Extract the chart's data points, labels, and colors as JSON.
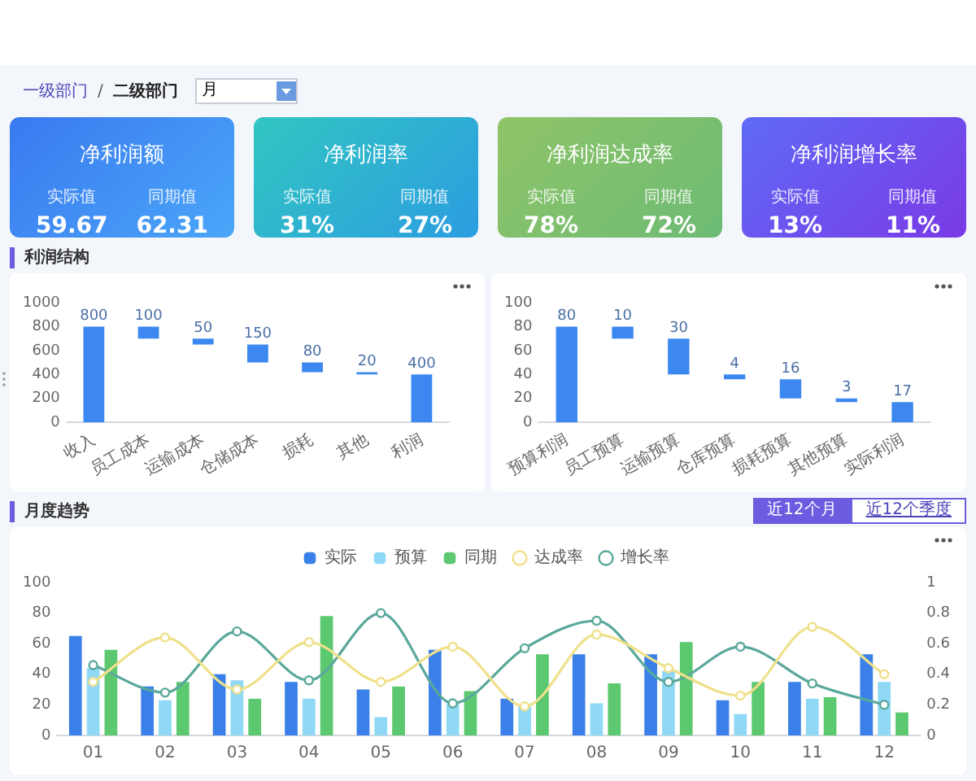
{
  "chart_data": [
    {
      "type": "other",
      "annotations": [
        "一级部门",
        "/",
        "二级部门",
        "月"
      ]
    },
    {
      "type": "other",
      "title": "净利润额",
      "annotations": [
        "实际值",
        "59.67",
        "同期值",
        "62.31"
      ]
    },
    {
      "type": "other",
      "title": "净利润率",
      "annotations": [
        "实际值",
        "31%",
        "同期值",
        "27%"
      ]
    },
    {
      "type": "other",
      "title": "净利润达成率",
      "annotations": [
        "实际值",
        "78%",
        "同期值",
        "72%"
      ]
    },
    {
      "type": "other",
      "title": "净利润增长率",
      "annotations": [
        "实际值",
        "13%",
        "同期值",
        "11%"
      ]
    },
    {
      "type": "bar",
      "title": "利润结构",
      "categories": [
        "收入",
        "员工成本",
        "运输成本",
        "仓储成本",
        "损耗",
        "其他",
        "利润"
      ],
      "values": [
        800,
        100,
        50,
        150,
        80,
        20,
        400
      ],
      "base": [
        0,
        700,
        650,
        500,
        420,
        400,
        0
      ],
      "color": "#3d88f0",
      "ylim": [
        0,
        1000
      ],
      "yticks": [
        0,
        200,
        400,
        600,
        800,
        1000
      ],
      "data_labels": true
    },
    {
      "type": "bar",
      "categories": [
        "预算利润",
        "员工预算",
        "运输预算",
        "仓库预算",
        "损耗预算",
        "其他预算",
        "实际利润"
      ],
      "values": [
        80,
        10,
        30,
        4,
        16,
        3,
        17
      ],
      "base": [
        0,
        70,
        40,
        36,
        20,
        17,
        0
      ],
      "color": "#3d88f0",
      "ylim": [
        0,
        100
      ],
      "yticks": [
        0,
        20,
        40,
        60,
        80,
        100
      ],
      "data_labels": true
    },
    {
      "type": "bar",
      "title": "月度趋势",
      "categories": [
        "01",
        "02",
        "03",
        "04",
        "05",
        "06",
        "07",
        "08",
        "09",
        "10",
        "11",
        "12"
      ],
      "series": [
        {
          "name": "实际",
          "color": "#3a80e8",
          "values": [
            65,
            32,
            40,
            35,
            30,
            56,
            24,
            53,
            53,
            23,
            35,
            53
          ]
        },
        {
          "name": "预算",
          "color": "#8fd8f6",
          "values": [
            44,
            23,
            36,
            24,
            12,
            21,
            19,
            21,
            42,
            14,
            24,
            35
          ]
        },
        {
          "name": "同期",
          "color": "#5cc870",
          "values": [
            56,
            35,
            24,
            78,
            32,
            29,
            53,
            34,
            61,
            35,
            25,
            15
          ]
        },
        {
          "name": "达成率",
          "type": "line",
          "axis": "y2",
          "color": "#efe08a",
          "values": [
            0.35,
            0.64,
            0.3,
            0.61,
            0.35,
            0.58,
            0.19,
            0.66,
            0.44,
            0.26,
            0.71,
            0.4
          ]
        },
        {
          "name": "增长率",
          "type": "line",
          "axis": "y2",
          "color": "#5aa89b",
          "values": [
            0.46,
            0.28,
            0.68,
            0.36,
            0.8,
            0.21,
            0.57,
            0.75,
            0.35,
            0.58,
            0.34,
            0.2
          ]
        }
      ],
      "ylim": [
        0,
        100
      ],
      "yticks": [
        0,
        20,
        40,
        60,
        80,
        100
      ],
      "y2lim": [
        0,
        1
      ],
      "y2ticks": [
        0,
        0.2,
        0.4,
        0.6,
        0.8,
        1
      ],
      "legend": "top",
      "marker": "circle",
      "annotations": [
        "近12个月",
        "近12个季度"
      ]
    }
  ]
}
